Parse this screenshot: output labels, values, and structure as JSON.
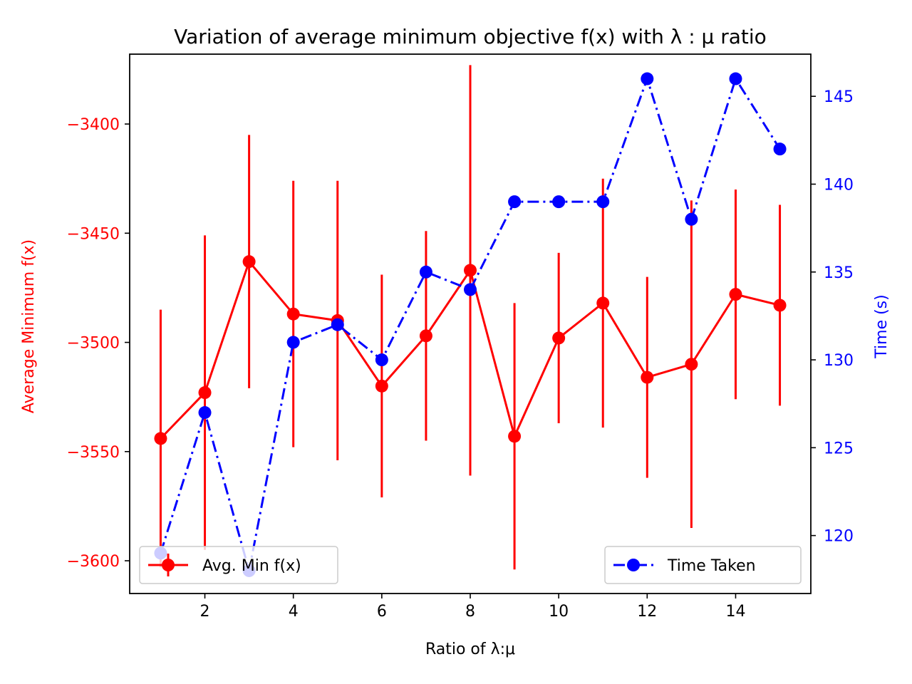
{
  "chart_data": {
    "type": "line",
    "title": "Variation of average minimum objective f(x) with λ : μ ratio",
    "xlabel": "Ratio of λ:μ",
    "ylabel_left": "Average Minimum f(x)",
    "ylabel_right": "Time (s)",
    "x": [
      1,
      2,
      3,
      4,
      5,
      6,
      7,
      8,
      9,
      10,
      11,
      12,
      13,
      14,
      15
    ],
    "xlim": [
      0.3,
      15.7
    ],
    "xticks": [
      "2",
      "4",
      "6",
      "8",
      "10",
      "12",
      "14"
    ],
    "left_axis": {
      "ylim": [
        -3615,
        -3368
      ],
      "ticks": [
        "−3400",
        "−3450",
        "−3500",
        "−3550",
        "−3600"
      ],
      "color": "#ff0000"
    },
    "right_axis": {
      "ylim": [
        116.7,
        147.4
      ],
      "ticks": [
        "120",
        "125",
        "130",
        "135",
        "140",
        "145"
      ],
      "color": "#0000ff"
    },
    "series": [
      {
        "name": "Avg. Min f(x)",
        "axis": "left",
        "color": "#ff0000",
        "style": "solid",
        "marker": "circle",
        "values": [
          -3544,
          -3523,
          -3463,
          -3487,
          -3490,
          -3520,
          -3497,
          -3467,
          -3543,
          -3498,
          -3482,
          -3516,
          -3510,
          -3478,
          -3483
        ],
        "error": [
          59,
          72,
          58,
          61,
          64,
          51,
          48,
          94,
          61,
          39,
          57,
          46,
          75,
          48,
          46
        ]
      },
      {
        "name": "Time Taken",
        "axis": "right",
        "color": "#0000ff",
        "style": "dashdot",
        "marker": "circle",
        "values": [
          119,
          127,
          118,
          131,
          132,
          130,
          135,
          134,
          139,
          139,
          139,
          146,
          138,
          146,
          142
        ]
      }
    ],
    "legends": [
      {
        "position": "lower-left",
        "label": "Avg. Min f(x)"
      },
      {
        "position": "lower-right",
        "label": "Time Taken"
      }
    ],
    "grid": false
  }
}
